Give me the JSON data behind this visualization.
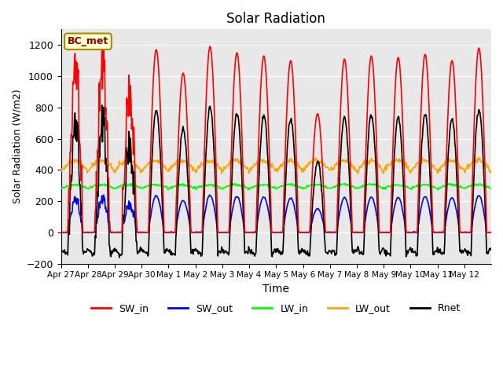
{
  "title": "Solar Radiation",
  "xlabel": "Time",
  "ylabel": "Solar Radiation (W/m2)",
  "ylim": [
    -200,
    1300
  ],
  "yticks": [
    -200,
    0,
    200,
    400,
    600,
    800,
    1000,
    1200
  ],
  "label_text": "BC_met",
  "legend_entries": [
    "SW_in",
    "SW_out",
    "LW_in",
    "LW_out",
    "Rnet"
  ],
  "line_colors": [
    "red",
    "blue",
    "lime",
    "orange",
    "black"
  ],
  "n_days": 16,
  "x_tick_labels": [
    "Apr 27",
    "Apr 28",
    "Apr 29",
    "Apr 30",
    "May 1",
    "May 2",
    "May 3",
    "May 4",
    "May 5",
    "May 6",
    "May 7",
    "May 8",
    "May 9",
    "May 10",
    "May 11",
    "May 12"
  ],
  "plot_bg_color": "#e8e8e8",
  "day_peaks_sw": [
    1150,
    1160,
    980,
    1170,
    1020,
    1190,
    1150,
    1130,
    1100,
    760,
    1110,
    1130,
    1120,
    1140,
    1100,
    1180
  ]
}
